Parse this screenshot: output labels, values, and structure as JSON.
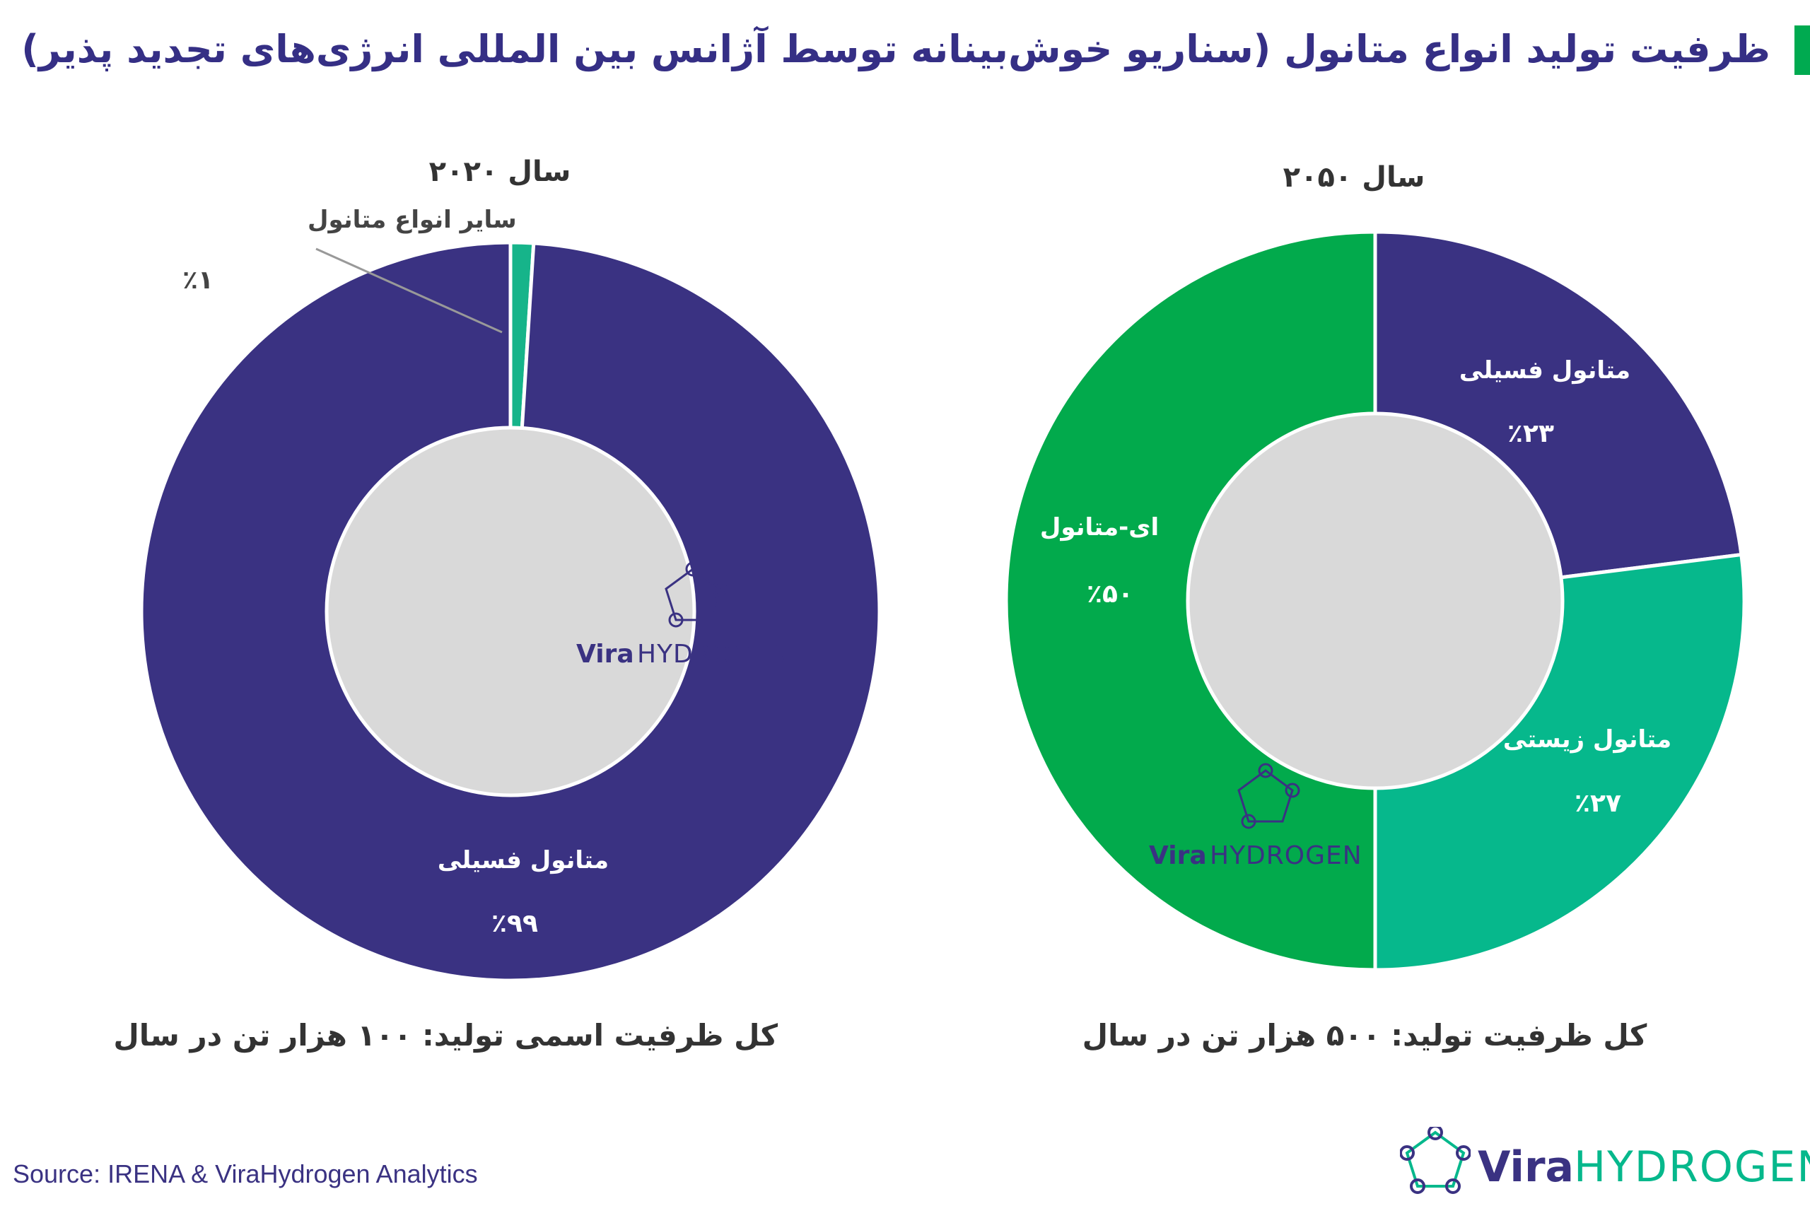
{
  "header": {
    "title": "ظرفیت تولید انواع متانول (سناریو خوش‌بینانه توسط آژانس بین المللی انرژی‌های تجدید پذیر)"
  },
  "colors": {
    "title_text": "#352f85",
    "accent_bar": "#00aa50",
    "fossil": "#3a3282",
    "bio": "#06b88c",
    "emethanol": "#02aa4c",
    "other": "#16b48a",
    "hole": "#d9d9d9",
    "leader": "#999999"
  },
  "chart_data": [
    {
      "type": "pie",
      "title": "سال ۲۰۲۰",
      "slices": [
        {
          "label": "سایر انواع متانول",
          "value": 1,
          "pct_label": "٪۱",
          "color_key": "other"
        },
        {
          "label": "متانول فسیلی",
          "value": 99,
          "pct_label": "٪۹۹",
          "color_key": "fossil"
        }
      ],
      "total_note": "کل ظرفیت اسمی تولید: ۱۰۰ هزار تن در سال"
    },
    {
      "type": "pie",
      "title": "سال ۲۰۵۰",
      "slices": [
        {
          "label": "متانول فسیلی",
          "value": 23,
          "pct_label": "٪۲۳",
          "color_key": "fossil"
        },
        {
          "label": "متانول زیستی",
          "value": 27,
          "pct_label": "٪۲۷",
          "color_key": "bio"
        },
        {
          "label": "ای-متانول",
          "value": 50,
          "pct_label": "٪۵۰",
          "color_key": "emethanol"
        }
      ],
      "total_note": "کل ظرفیت تولید: ۵۰۰ هزار تن در سال"
    }
  ],
  "watermark": {
    "brand_bold": "Vira",
    "brand_light": "HYDROGEN"
  },
  "footer": {
    "source": "Source: IRENA & ViraHydrogen Analytics",
    "logo_bold": "Vira",
    "logo_light": "HYDROGEN"
  }
}
